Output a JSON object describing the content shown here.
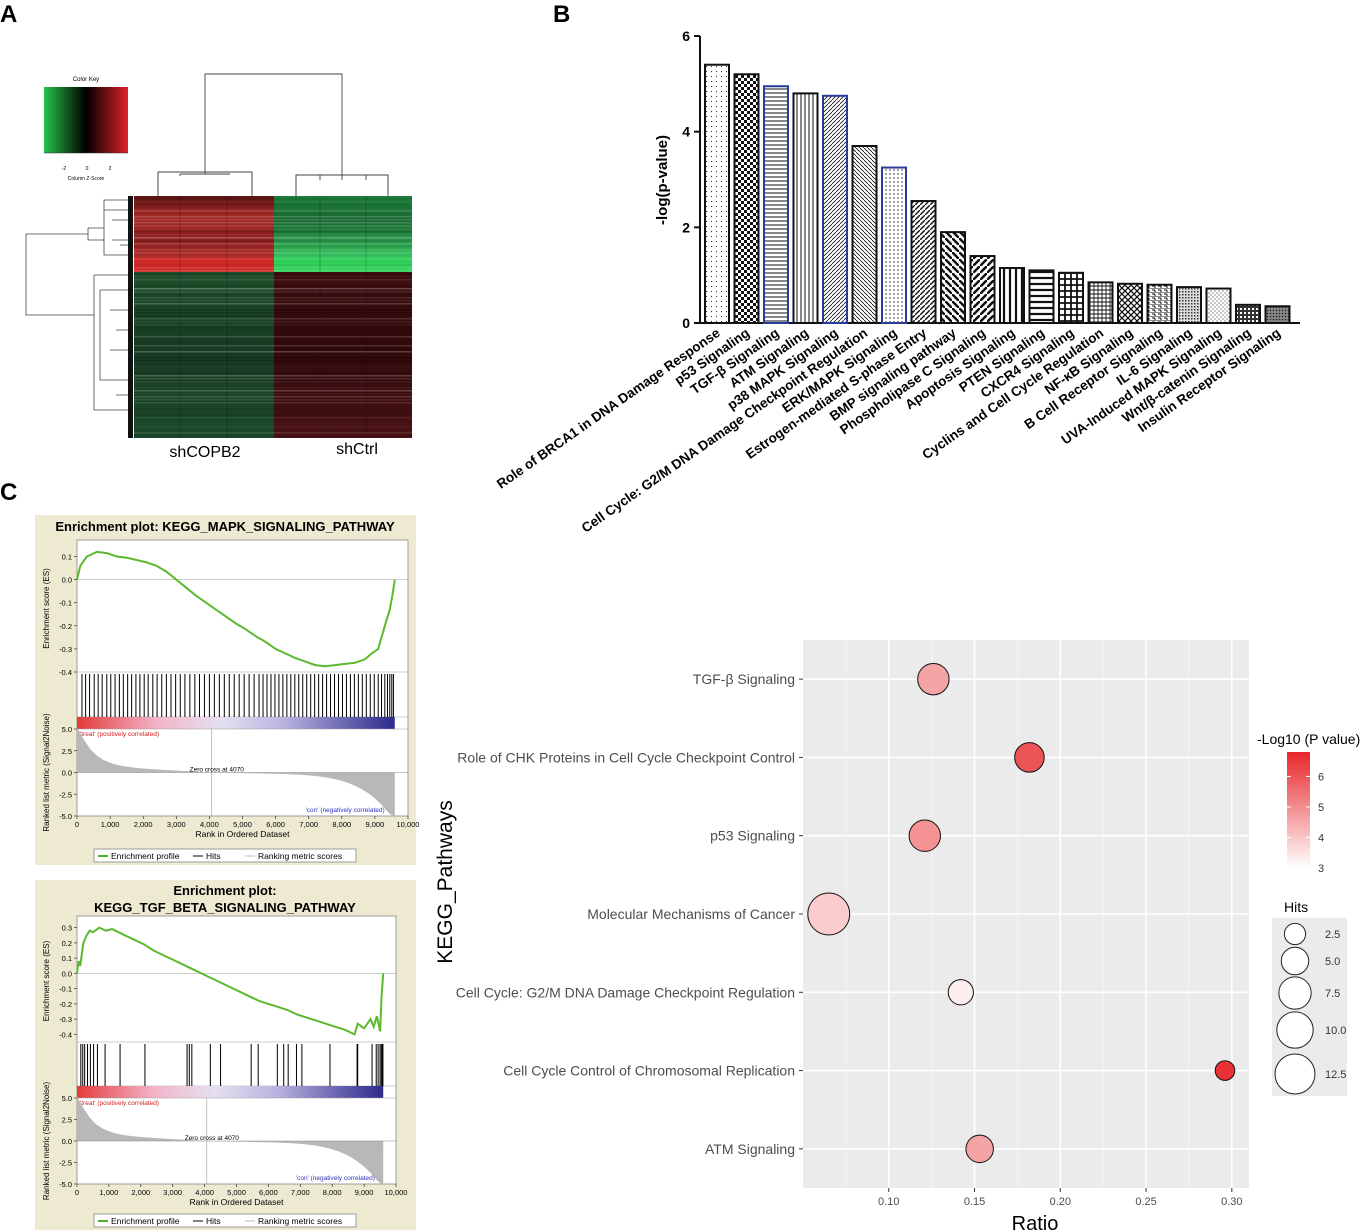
{
  "panels": {
    "a": "A",
    "b": "B",
    "c": "C"
  },
  "heatmap": {
    "color_key_title": "Color Key",
    "color_key_ticks": [
      "-2",
      "0",
      "2"
    ],
    "color_key_xlabel": "Column Z-Score",
    "groups": [
      "shCOPB2",
      "shCtrl"
    ],
    "colors": {
      "low": "#27c24a",
      "mid": "#000000",
      "high": "#e0202a"
    }
  },
  "chart_data": [
    {
      "type": "bar",
      "id": "B",
      "title": "",
      "xlabel": "",
      "ylabel": "-log(p-value)",
      "ylim": [
        0,
        6
      ],
      "yticks": [
        "0",
        "2",
        "4",
        "6"
      ],
      "categories": [
        "Role of BRCA1 in DNA Damage Response",
        "p53 Signaling",
        "TGF-β Signaling",
        "ATM Signaling",
        "p38 MAPK Signaling",
        "Cell Cycle: G2/M DNA Damage Checkpoint Regulation",
        "ERK/MAPK Signaling",
        "Estrogen-mediated S-phase Entry",
        "BMP signaling pathway",
        "Phospholipase C Signaling",
        "Apoptosis Signaling",
        "PTEN Signaling",
        "CXCR4 Signaling",
        "Cyclins and Cell Cycle Regulation",
        "NF-κB Signaling",
        "B Cell Receptor Signaling",
        "IL-6 Signaling",
        "UVA-Induced MAPK Signaling",
        "Wnt/β-catenin Signaling",
        "Insulin Receptor Signaling"
      ],
      "values": [
        5.4,
        5.2,
        4.95,
        4.8,
        4.75,
        3.7,
        3.25,
        2.55,
        1.9,
        1.4,
        1.15,
        1.1,
        1.05,
        0.85,
        0.82,
        0.8,
        0.75,
        0.72,
        0.38,
        0.35
      ],
      "highlighted": [
        "TGF-β Signaling",
        "p38 MAPK Signaling",
        "ERK/MAPK Signaling"
      ],
      "colors": {
        "bar": "#111111",
        "highlight": "#2b3b9a"
      }
    },
    {
      "type": "line",
      "id": "C1",
      "title": "Enrichment plot: KEGG_MAPK_SIGNALING_PATHWAY",
      "ylabel": "Enrichment score (ES)",
      "ylim": [
        -0.4,
        0.15
      ],
      "yticks": [
        "0.1",
        "0.0",
        "-0.1",
        "-0.2",
        "-0.3",
        "-0.4"
      ],
      "x": [
        0,
        100,
        300,
        600,
        900,
        1200,
        1500,
        1800,
        2100,
        2400,
        2700,
        3000,
        3300,
        3600,
        3900,
        4200,
        4500,
        4800,
        5100,
        5400,
        5700,
        6000,
        6300,
        6600,
        6900,
        7200,
        7500,
        7800,
        8100,
        8400,
        8700,
        8900,
        9100,
        9300,
        9450,
        9550,
        9600
      ],
      "es": [
        0.0,
        0.06,
        0.1,
        0.12,
        0.115,
        0.1,
        0.095,
        0.085,
        0.075,
        0.06,
        0.035,
        0.0,
        -0.035,
        -0.07,
        -0.1,
        -0.13,
        -0.16,
        -0.19,
        -0.215,
        -0.245,
        -0.27,
        -0.3,
        -0.32,
        -0.34,
        -0.355,
        -0.37,
        -0.375,
        -0.37,
        -0.365,
        -0.36,
        -0.345,
        -0.32,
        -0.3,
        -0.2,
        -0.13,
        -0.05,
        0.0
      ],
      "hits": [
        150,
        260,
        380,
        520,
        640,
        760,
        900,
        1020,
        1150,
        1280,
        1400,
        1530,
        1650,
        1780,
        1900,
        2030,
        2150,
        2290,
        2420,
        2560,
        2700,
        2840,
        2980,
        3120,
        3260,
        3410,
        3560,
        3700,
        3850,
        4000,
        4150,
        4300,
        4450,
        4600,
        4750,
        4900,
        5050,
        5200,
        5350,
        5500,
        5620,
        5740,
        5860,
        5980,
        6100,
        6220,
        6340,
        6460,
        6580,
        6700,
        6820,
        6940,
        7060,
        7180,
        7300,
        7420,
        7540,
        7660,
        7780,
        7900,
        8020,
        8140,
        8260,
        8380,
        8500,
        8620,
        8740,
        8860,
        8980,
        9100,
        9200,
        9300,
        9380,
        9450,
        9510,
        9560
      ],
      "metric_ylabel": "Ranked list metric (Signal2Noise)",
      "metric_yticks": [
        "5.0",
        "2.5",
        "0.0",
        "-2.5",
        "-5.0"
      ],
      "xlabel": "Rank in Ordered Dataset",
      "xticks": [
        "0",
        "1,000",
        "2,000",
        "3,000",
        "4,000",
        "5,000",
        "6,000",
        "7,000",
        "8,000",
        "9,000",
        "10,000"
      ],
      "zero_cross": "Zero cross at 4070",
      "pos_label": "'treat' (positively correlated)",
      "neg_label": "'con' (negatively correlated)",
      "legend": [
        "Enrichment profile",
        "Hits",
        "Ranking metric scores"
      ]
    },
    {
      "type": "line",
      "id": "C2",
      "title_lines": [
        "Enrichment plot:",
        "KEGG_TGF_BETA_SIGNALING_PATHWAY"
      ],
      "ylabel": "Enrichment score (ES)",
      "ylim": [
        -0.45,
        0.35
      ],
      "yticks": [
        "0.3",
        "0.2",
        "0.1",
        "0.0",
        "-0.1",
        "-0.2",
        "-0.3",
        "-0.4"
      ],
      "x": [
        0,
        50,
        100,
        200,
        300,
        400,
        500,
        700,
        900,
        1100,
        1300,
        1500,
        1800,
        2100,
        2400,
        2700,
        3000,
        3300,
        3600,
        3900,
        4200,
        4500,
        4800,
        5100,
        5400,
        5700,
        6000,
        6300,
        6600,
        6900,
        7200,
        7500,
        7800,
        8100,
        8400,
        8700,
        8800,
        9000,
        9200,
        9300,
        9400,
        9500,
        9550,
        9600
      ],
      "es": [
        0.0,
        0.08,
        0.05,
        0.2,
        0.25,
        0.28,
        0.27,
        0.3,
        0.28,
        0.29,
        0.27,
        0.25,
        0.22,
        0.19,
        0.15,
        0.12,
        0.09,
        0.06,
        0.03,
        0.0,
        -0.03,
        -0.06,
        -0.09,
        -0.12,
        -0.15,
        -0.18,
        -0.2,
        -0.22,
        -0.24,
        -0.27,
        -0.29,
        -0.31,
        -0.33,
        -0.35,
        -0.37,
        -0.4,
        -0.33,
        -0.36,
        -0.3,
        -0.35,
        -0.28,
        -0.38,
        -0.15,
        0.0
      ],
      "hits": [
        120,
        180,
        240,
        330,
        420,
        520,
        640,
        880,
        1350,
        2130,
        3450,
        3520,
        3600,
        4180,
        4500,
        5460,
        5680,
        6280,
        6480,
        6620,
        6880,
        7050,
        7930,
        8780,
        8800,
        9250,
        9380,
        9440,
        9500,
        9540,
        9570,
        9590
      ],
      "metric_ylabel": "Ranked list metric (Signal2Noise)",
      "metric_yticks": [
        "5.0",
        "2.5",
        "0.0",
        "-2.5",
        "-5.0"
      ],
      "xlabel": "Rank in Ordered Dataset",
      "xticks": [
        "0",
        "1,000",
        "2,000",
        "3,000",
        "4,000",
        "5,000",
        "6,000",
        "7,000",
        "8,000",
        "9,000",
        "10,000"
      ],
      "zero_cross": "Zero cross at 4070",
      "pos_label": "'treat' (positively correlated)",
      "neg_label": "'con' (negatively correlated)",
      "legend": [
        "Enrichment profile",
        "Hits",
        "Ranking metric scores"
      ]
    },
    {
      "type": "scatter",
      "id": "D",
      "xlabel": "Ratio",
      "ylabel": "KEGG_Pathways",
      "xlim": [
        0.05,
        0.31
      ],
      "xticks": [
        0.1,
        0.15,
        0.2,
        0.25,
        0.3
      ],
      "xtick_labels": [
        "0.10",
        "0.15",
        "0.20",
        "0.25",
        "0.30"
      ],
      "categories": [
        "TGF-β Signaling",
        "Role of CHK Proteins in Cell Cycle Checkpoint Control",
        "p53 Signaling",
        "Molecular Mechanisms of Cancer",
        "Cell Cycle: G2/M DNA Damage Checkpoint Regulation",
        "Cell Cycle Control of Chromosomal Replication",
        "ATM Signaling"
      ],
      "ratio": [
        0.126,
        0.182,
        0.121,
        0.065,
        0.142,
        0.296,
        0.153
      ],
      "neglog10p": [
        4.6,
        6.0,
        4.9,
        3.9,
        3.3,
        6.6,
        4.6
      ],
      "hits": [
        7,
        6,
        7,
        14,
        4,
        2,
        5
      ],
      "color_legend_title": "-Log10 (P value)",
      "color_legend_ticks": [
        3,
        4,
        5,
        6
      ],
      "color_scale": [
        "#ffffff",
        "#e8262b"
      ],
      "size_legend_title": "Hits",
      "size_legend_values": [
        "2.5",
        "5.0",
        "7.5",
        "10.0",
        "12.5"
      ],
      "panel_bg": "#ebebeb"
    }
  ]
}
